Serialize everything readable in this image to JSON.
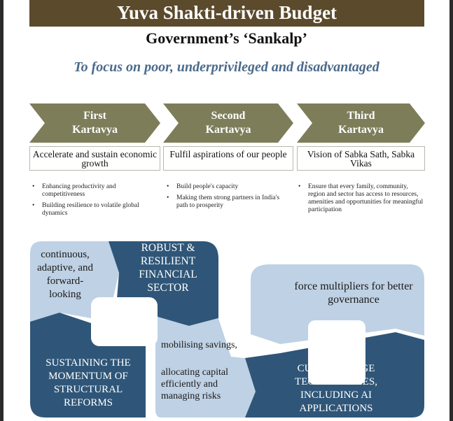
{
  "header": {
    "title": "Yuva Shakti-driven Budget",
    "subtitle": "Government’s ‘Sankalp’",
    "focus": "To focus on poor, underprivileged and disadvantaged"
  },
  "kartavyas": [
    {
      "label": "First Kartavya",
      "goal": "Accelerate and sustain economic growth",
      "bullets": [
        "Enhancing productivity and competitiveness",
        "Building resilience to volatile global dynamics"
      ]
    },
    {
      "label": "Second Kartavya",
      "goal": "Fulfil aspirations of our people",
      "bullets": [
        "Build people's capacity",
        "Making them strong partners in India's path to prosperity"
      ]
    },
    {
      "label": "Third Kartavya",
      "goal": "Vision of Sabka Sath, Sabka Vikas",
      "bullets": [
        "Ensure that every family, community, region and sector has access to resources, amenities and opportunities for meaningful participation"
      ]
    }
  ],
  "diagram": {
    "continuous": "continuous, adaptive, and forward-looking",
    "financial": "ROBUST & RESILIENT FINANCIAL SECTOR",
    "force": "force multipliers for better governance",
    "reforms": "SUSTAINING THE MOMENTUM OF STRUCTURAL REFORMS",
    "mobilising": "mobilising savings,",
    "allocating": "allocating capital efficiently and managing risks",
    "tech": "CUTTING-EDGE TECHNOLOGIES, INCLUDING AI APPLICATIONS"
  },
  "colors": {
    "title_bg": "#5b4a2b",
    "chevron": "#7d7d5a",
    "focus_text": "#4a6a8c",
    "light_blue": "#bfd1e4",
    "dark_blue": "#2f5678"
  }
}
